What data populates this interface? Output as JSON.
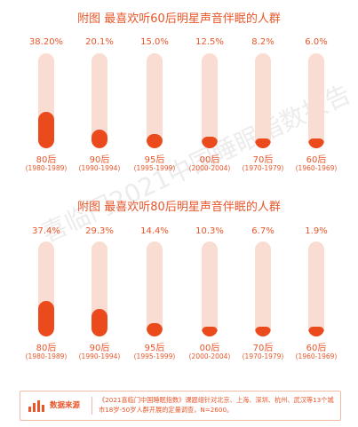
{
  "watermark": "喜临门2021中国睡眠指数报告",
  "colors": {
    "accent": "#e8562a",
    "fill": "#ea4a1c",
    "track": "#f9ddd2"
  },
  "chart_data": [
    {
      "type": "bar",
      "title": "附图 最喜欢听60后明星声音伴眠的人群",
      "categories": [
        "80后",
        "90后",
        "95后",
        "00后",
        "70后",
        "60后"
      ],
      "sub_labels": [
        "(1980-1989)",
        "(1990-1994)",
        "(1995-1999)",
        "(2000-2004)",
        "(1970-1979)",
        "(1960-1969)"
      ],
      "values": [
        38.2,
        20.1,
        15.0,
        12.5,
        8.2,
        6.0
      ],
      "value_labels": [
        "38.20%",
        "20.1%",
        "15.0%",
        "12.5%",
        "8.2%",
        "6.0%"
      ],
      "ylim": [
        0,
        100
      ]
    },
    {
      "type": "bar",
      "title": "附图 最喜欢听80后明星声音伴眠的人群",
      "categories": [
        "80后",
        "90后",
        "95后",
        "00后",
        "70后",
        "60后"
      ],
      "sub_labels": [
        "(1980-1989)",
        "(1990-1994)",
        "(1995-1999)",
        "(2000-2004)",
        "(1970-1979)",
        "(1960-1969)"
      ],
      "values": [
        37.4,
        29.3,
        14.4,
        10.3,
        6.7,
        1.9
      ],
      "value_labels": [
        "37.4%",
        "29.3%",
        "14.4%",
        "10.3%",
        "6.7%",
        "1.9%"
      ],
      "ylim": [
        0,
        100
      ]
    }
  ],
  "footer": {
    "label": "数据来源",
    "icon": "bar-chart-icon",
    "text": "《2021喜临门中国睡眠指数》课题组针对北京、上海、深圳、杭州、武汉等13个城市18岁-50岁人群开展的定量调查，N=2600。"
  }
}
